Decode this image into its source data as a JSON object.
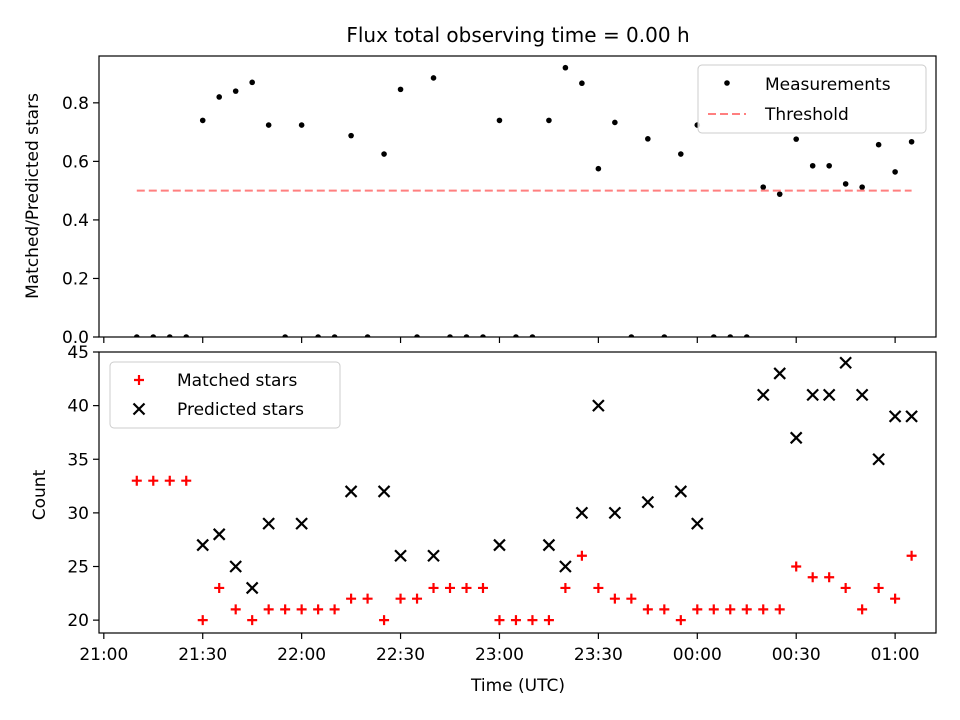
{
  "chart_data": [
    {
      "type": "scatter",
      "title": "Flux total observing time = 0.00 h",
      "xlabel": "",
      "ylabel": "Matched/Predicted stars",
      "ylim": [
        0,
        0.96
      ],
      "y_ticks": [
        "0.0",
        "0.2",
        "0.4",
        "0.6",
        "0.8"
      ],
      "grid": false,
      "legend_position": "top-right",
      "series": [
        {
          "name": "Measurements",
          "color": "#000000",
          "marker": "dot",
          "points": [
            [
              "21:10",
              0
            ],
            [
              "21:15",
              0
            ],
            [
              "21:20",
              0
            ],
            [
              "21:25",
              0
            ],
            [
              "21:30",
              0.74
            ],
            [
              "21:35",
              0.82
            ],
            [
              "21:40",
              0.84
            ],
            [
              "21:45",
              0.87
            ],
            [
              "21:50",
              0.724
            ],
            [
              "21:55",
              0
            ],
            [
              "22:00",
              0.724
            ],
            [
              "22:05",
              0
            ],
            [
              "22:10",
              0
            ],
            [
              "22:15",
              0.688
            ],
            [
              "22:20",
              0
            ],
            [
              "22:25",
              0.625
            ],
            [
              "22:30",
              0.846
            ],
            [
              "22:35",
              0
            ],
            [
              "22:40",
              0.885
            ],
            [
              "22:45",
              0
            ],
            [
              "22:50",
              0
            ],
            [
              "22:55",
              0
            ],
            [
              "23:00",
              0.74
            ],
            [
              "23:05",
              0
            ],
            [
              "23:10",
              0
            ],
            [
              "23:15",
              0.74
            ],
            [
              "23:20",
              0.92
            ],
            [
              "23:25",
              0.867
            ],
            [
              "23:30",
              0.575
            ],
            [
              "23:35",
              0.733
            ],
            [
              "23:40",
              0
            ],
            [
              "23:45",
              0.677
            ],
            [
              "23:50",
              0
            ],
            [
              "23:55",
              0.625
            ],
            [
              "00:00",
              0.724
            ],
            [
              "00:05",
              0
            ],
            [
              "00:10",
              0
            ],
            [
              "00:15",
              0
            ],
            [
              "00:20",
              0.512
            ],
            [
              "00:25",
              0.488
            ],
            [
              "00:30",
              0.676
            ],
            [
              "00:35",
              0.585
            ],
            [
              "00:40",
              0.585
            ],
            [
              "00:45",
              0.523
            ],
            [
              "00:50",
              0.512
            ],
            [
              "00:55",
              0.657
            ],
            [
              "01:00",
              0.564
            ],
            [
              "01:05",
              0.667
            ]
          ]
        },
        {
          "name": "Threshold",
          "color": "#ff7f7f",
          "style": "dashed",
          "points": [
            [
              "21:10",
              0.5
            ],
            [
              "01:05",
              0.5
            ]
          ]
        }
      ]
    },
    {
      "type": "scatter",
      "title": "",
      "xlabel": "Time (UTC)",
      "ylabel": "Count",
      "ylim": [
        18.8,
        45
      ],
      "y_ticks": [
        "20",
        "25",
        "30",
        "35",
        "40",
        "45"
      ],
      "x_ticks": [
        "21:00",
        "21:30",
        "22:00",
        "22:30",
        "23:00",
        "23:30",
        "00:00",
        "00:30",
        "01:00"
      ],
      "grid": false,
      "legend_position": "top-left",
      "series": [
        {
          "name": "Matched stars",
          "color": "#ff0000",
          "marker": "plus",
          "points": [
            [
              "21:10",
              33
            ],
            [
              "21:15",
              33
            ],
            [
              "21:20",
              33
            ],
            [
              "21:25",
              33
            ],
            [
              "21:30",
              20
            ],
            [
              "21:35",
              23
            ],
            [
              "21:40",
              21
            ],
            [
              "21:45",
              20
            ],
            [
              "21:50",
              21
            ],
            [
              "21:55",
              21
            ],
            [
              "22:00",
              21
            ],
            [
              "22:05",
              21
            ],
            [
              "22:10",
              21
            ],
            [
              "22:15",
              22
            ],
            [
              "22:20",
              22
            ],
            [
              "22:25",
              20
            ],
            [
              "22:30",
              22
            ],
            [
              "22:35",
              22
            ],
            [
              "22:40",
              23
            ],
            [
              "22:45",
              23
            ],
            [
              "22:50",
              23
            ],
            [
              "22:55",
              23
            ],
            [
              "23:00",
              20
            ],
            [
              "23:05",
              20
            ],
            [
              "23:10",
              20
            ],
            [
              "23:15",
              20
            ],
            [
              "23:20",
              23
            ],
            [
              "23:25",
              26
            ],
            [
              "23:30",
              23
            ],
            [
              "23:35",
              22
            ],
            [
              "23:40",
              22
            ],
            [
              "23:45",
              21
            ],
            [
              "23:50",
              21
            ],
            [
              "23:55",
              20
            ],
            [
              "00:00",
              21
            ],
            [
              "00:05",
              21
            ],
            [
              "00:10",
              21
            ],
            [
              "00:15",
              21
            ],
            [
              "00:20",
              21
            ],
            [
              "00:25",
              21
            ],
            [
              "00:30",
              25
            ],
            [
              "00:35",
              24
            ],
            [
              "00:40",
              24
            ],
            [
              "00:45",
              23
            ],
            [
              "00:50",
              21
            ],
            [
              "00:55",
              23
            ],
            [
              "01:00",
              22
            ],
            [
              "01:05",
              26
            ]
          ]
        },
        {
          "name": "Predicted stars",
          "color": "#000000",
          "marker": "cross",
          "points": [
            [
              "21:30",
              27
            ],
            [
              "21:35",
              28
            ],
            [
              "21:40",
              25
            ],
            [
              "21:45",
              23
            ],
            [
              "21:50",
              29
            ],
            [
              "22:00",
              29
            ],
            [
              "22:15",
              32
            ],
            [
              "22:25",
              32
            ],
            [
              "22:30",
              26
            ],
            [
              "22:40",
              26
            ],
            [
              "23:00",
              27
            ],
            [
              "23:15",
              27
            ],
            [
              "23:20",
              25
            ],
            [
              "23:25",
              30
            ],
            [
              "23:30",
              40
            ],
            [
              "23:35",
              30
            ],
            [
              "23:45",
              31
            ],
            [
              "23:55",
              32
            ],
            [
              "00:00",
              29
            ],
            [
              "00:20",
              41
            ],
            [
              "00:25",
              43
            ],
            [
              "00:30",
              37
            ],
            [
              "00:35",
              41
            ],
            [
              "00:40",
              41
            ],
            [
              "00:45",
              44
            ],
            [
              "00:50",
              41
            ],
            [
              "00:55",
              35
            ],
            [
              "01:00",
              39
            ],
            [
              "01:05",
              39
            ]
          ]
        }
      ]
    }
  ]
}
